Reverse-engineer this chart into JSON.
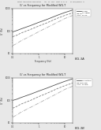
{
  "header_text": "Patent Application Publication    Apr. 24, 2014  Sheet 13 of 13    US 2014/0099417 A1",
  "fig3a": {
    "title": "G' vs Frequency for Modified WG-T",
    "xlabel": "Frequency (Hz)",
    "ylabel": "G' (Pa)",
    "legend": [
      "G' BG",
      "G' 25BG",
      "G' SC"
    ],
    "legend_colors": [
      "#444444",
      "#777777",
      "#aaaaaa"
    ],
    "legend_styles": [
      "-",
      "--",
      "-."
    ],
    "curves": [
      {
        "x": [
          0.1,
          0.15,
          0.2,
          0.5,
          1.0,
          2.0,
          5.0,
          10.0,
          20.0
        ],
        "y": [
          90,
          105,
          120,
          175,
          240,
          320,
          490,
          660,
          850
        ]
      },
      {
        "x": [
          0.1,
          0.15,
          0.2,
          0.5,
          1.0,
          2.0,
          5.0,
          10.0,
          20.0
        ],
        "y": [
          55,
          65,
          78,
          118,
          165,
          225,
          360,
          490,
          640
        ]
      },
      {
        "x": [
          0.1,
          0.15,
          0.2,
          0.5,
          1.0,
          2.0,
          5.0,
          10.0,
          20.0
        ],
        "y": [
          22,
          28,
          35,
          60,
          92,
          138,
          235,
          355,
          490
        ]
      }
    ],
    "xlim": [
      0.1,
      20
    ],
    "ylim": [
      10,
      1000
    ],
    "yticks": [
      10,
      100,
      1000
    ],
    "xticks": [
      0.1,
      1,
      10
    ],
    "label": "FIG.3A"
  },
  "fig3b": {
    "title": "G' vs Frequency for Modified WG-T",
    "xlabel": "Frequency (Hz)",
    "ylabel": "G' (Pa)",
    "legend": [
      "G' control",
      "G' BG",
      "G' WG"
    ],
    "legend_colors": [
      "#444444",
      "#777777",
      "#aaaaaa"
    ],
    "legend_styles": [
      "-",
      "--",
      "-."
    ],
    "curves": [
      {
        "x": [
          0.1,
          0.15,
          0.2,
          0.5,
          1.0,
          2.0,
          5.0,
          10.0,
          20.0
        ],
        "y": [
          100,
          115,
          132,
          192,
          262,
          350,
          530,
          710,
          920
        ]
      },
      {
        "x": [
          0.1,
          0.15,
          0.2,
          0.5,
          1.0,
          2.0,
          5.0,
          10.0,
          20.0
        ],
        "y": [
          45,
          55,
          67,
          102,
          148,
          205,
          330,
          455,
          598
        ]
      },
      {
        "x": [
          0.1,
          0.15,
          0.2,
          0.5,
          1.0,
          2.0,
          5.0,
          10.0,
          20.0
        ],
        "y": [
          18,
          23,
          29,
          50,
          76,
          115,
          200,
          310,
          430
        ]
      }
    ],
    "xlim": [
      0.1,
      20
    ],
    "ylim": [
      10,
      1000
    ],
    "yticks": [
      10,
      100,
      1000
    ],
    "xticks": [
      0.1,
      1,
      10
    ],
    "label": "FIG.3B"
  },
  "page_bg": "#e8e8e8",
  "plot_bg": "#ffffff",
  "header_color": "#555555",
  "title_color": "#222222",
  "axis_color": "#333333",
  "tick_color": "#333333",
  "spine_color": "#555555"
}
